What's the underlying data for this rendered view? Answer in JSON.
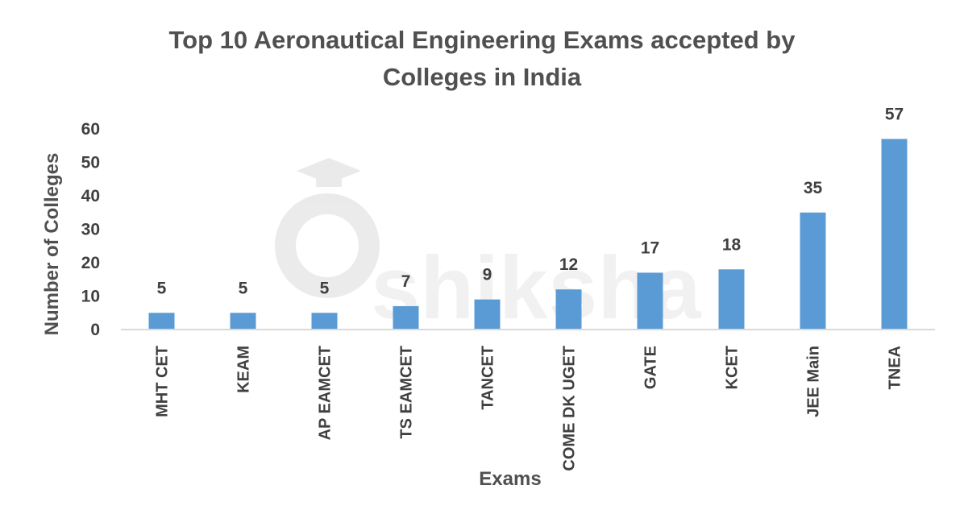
{
  "chart_data": {
    "type": "bar",
    "title_lines": [
      "Top 10 Aeronautical Engineering Exams accepted by",
      "Colleges in India"
    ],
    "xlabel": "Exams",
    "ylabel": "Number of Colleges",
    "categories": [
      "MHT CET",
      "KEAM",
      "AP EAMCET",
      "TS EAMCET",
      "TANCET",
      "COME DK UGET",
      "GATE",
      "KCET",
      "JEE Main",
      "TNEA"
    ],
    "values": [
      5,
      5,
      5,
      7,
      9,
      12,
      17,
      18,
      35,
      57
    ],
    "ylim": [
      0,
      60
    ],
    "yticks": [
      0,
      10,
      20,
      30,
      40,
      50,
      60
    ],
    "grid": false,
    "legend": "none",
    "bar_color": "#5B9BD5",
    "axis_color": "#D9D9D9",
    "text_color": "#404040"
  },
  "watermark": {
    "text": "shiksha",
    "icon": "graduation-cap-icon"
  }
}
